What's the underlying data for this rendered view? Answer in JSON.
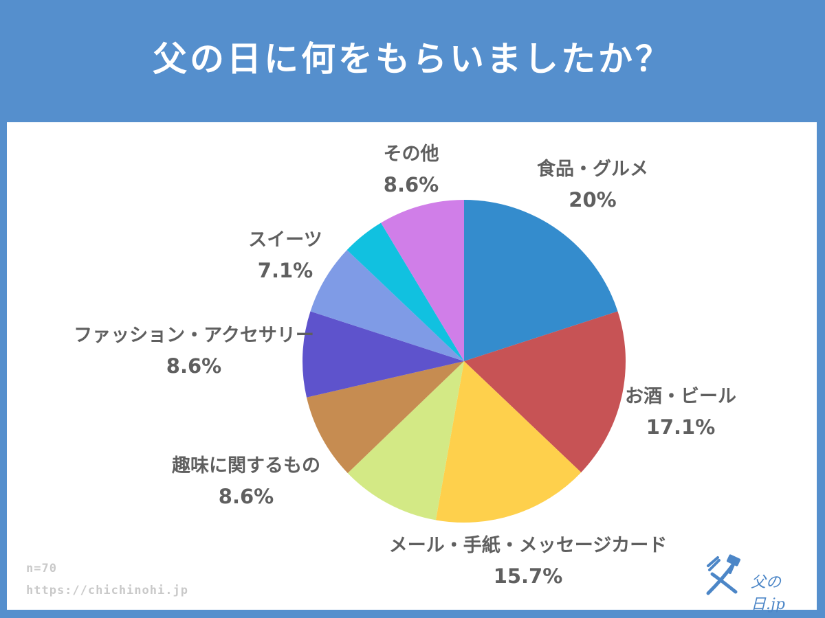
{
  "title": "父の日に何をもらいましたか？",
  "footer": {
    "sample": "n=70",
    "url": "https://chichinohi.jp"
  },
  "logo": {
    "text": "父の日.jp",
    "icon": "hammer-father-logo",
    "color": "#4c86c7"
  },
  "colors": {
    "background": "#558fcd",
    "panel": "#ffffff",
    "label": "#5f5f5f"
  },
  "chart_data": {
    "type": "pie",
    "title": "父の日に何をもらいましたか？",
    "start": "12 o'clock, clockwise",
    "slices": [
      {
        "name": "食品・グルメ",
        "value": 20,
        "display": "20%",
        "color": "#348ccd"
      },
      {
        "name": "お酒・ビール",
        "value": 17.1,
        "display": "17.1%",
        "color": "#c75355"
      },
      {
        "name": "メール・手紙・メッセージカード",
        "value": 15.7,
        "display": "15.7%",
        "color": "#fed04c"
      },
      {
        "name": "",
        "value": 10,
        "display": "",
        "color": "#d3e985"
      },
      {
        "name": "趣味に関するもの",
        "value": 8.6,
        "display": "8.6%",
        "color": "#c68c51"
      },
      {
        "name": "ファッション・アクセサリー",
        "value": 8.6,
        "display": "8.6%",
        "color": "#5e53cc"
      },
      {
        "name": "スイーツ",
        "value": 7.1,
        "display": "7.1%",
        "color": "#7f9be6"
      },
      {
        "name": "",
        "value": 4.3,
        "display": "",
        "color": "#11c1e0"
      },
      {
        "name": "その他",
        "value": 8.6,
        "display": "8.6%",
        "color": "#d07ee8"
      }
    ]
  }
}
